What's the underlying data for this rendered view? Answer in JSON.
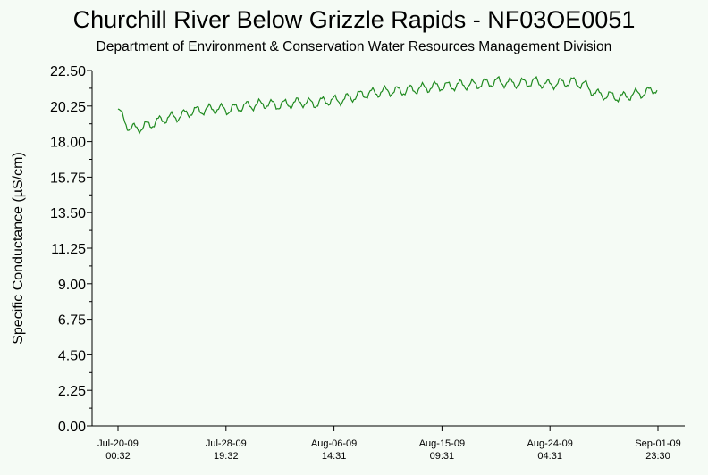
{
  "chart_data": {
    "type": "line",
    "title": "Churchill River Below Grizzle Rapids - NF03OE0051",
    "subtitle": "Department of Environment & Conservation Water Resources Management Division",
    "ylabel": "Specific Conductance (µS/cm)",
    "xlabel": "",
    "ylim": [
      0,
      22.5
    ],
    "y_ticks": [
      "0.00",
      "2.25",
      "4.50",
      "6.75",
      "9.00",
      "11.25",
      "13.50",
      "15.75",
      "18.00",
      "20.25",
      "22.50"
    ],
    "x_ticks": [
      {
        "date": "Jul-20-09",
        "time": "00:32"
      },
      {
        "date": "Jul-28-09",
        "time": "19:32"
      },
      {
        "date": "Aug-06-09",
        "time": "14:31"
      },
      {
        "date": "Aug-15-09",
        "time": "09:31"
      },
      {
        "date": "Aug-24-09",
        "time": "04:31"
      },
      {
        "date": "Sep-01-09",
        "time": "23:30"
      }
    ],
    "x_range": [
      "2009-07-20 00:32",
      "2009-09-01 23:30"
    ],
    "grid": false,
    "series_color": "#1f8a1f",
    "series": [
      {
        "x": [
          "2009-07-20 00:32",
          "2009-07-21 00:00",
          "2009-07-22 00:00",
          "2009-07-23 00:00",
          "2009-07-24 00:00",
          "2009-07-25 00:00",
          "2009-07-26 00:00",
          "2009-07-27 00:00",
          "2009-07-28 00:00",
          "2009-07-29 00:00",
          "2009-07-30 00:00",
          "2009-07-31 00:00",
          "2009-08-01 00:00",
          "2009-08-02 00:00",
          "2009-08-03 00:00",
          "2009-08-04 00:00",
          "2009-08-05 00:00",
          "2009-08-06 00:00",
          "2009-08-07 00:00",
          "2009-08-08 00:00",
          "2009-08-09 00:00",
          "2009-08-10 00:00",
          "2009-08-11 00:00",
          "2009-08-12 00:00",
          "2009-08-13 00:00",
          "2009-08-14 00:00",
          "2009-08-15 00:00",
          "2009-08-16 00:00",
          "2009-08-17 00:00",
          "2009-08-18 00:00",
          "2009-08-19 00:00",
          "2009-08-20 00:00",
          "2009-08-21 00:00",
          "2009-08-22 00:00",
          "2009-08-23 00:00",
          "2009-08-24 00:00",
          "2009-08-25 00:00",
          "2009-08-26 00:00",
          "2009-08-27 00:00",
          "2009-08-28 00:00",
          "2009-08-29 00:00",
          "2009-08-30 00:00",
          "2009-08-31 00:00",
          "2009-09-01 00:00",
          "2009-09-01 23:30"
        ],
        "values": [
          20.0,
          18.8,
          18.9,
          19.2,
          19.5,
          19.6,
          19.9,
          20.0,
          20.1,
          20.0,
          20.2,
          20.3,
          20.4,
          20.3,
          20.4,
          20.5,
          20.4,
          20.6,
          20.6,
          20.8,
          21.0,
          21.1,
          21.2,
          21.2,
          21.3,
          21.4,
          21.5,
          21.5,
          21.6,
          21.6,
          21.7,
          21.8,
          21.7,
          21.7,
          21.8,
          21.6,
          21.7,
          21.8,
          21.6,
          21.0,
          20.9,
          20.8,
          21.0,
          21.1,
          21.4
        ]
      }
    ]
  }
}
